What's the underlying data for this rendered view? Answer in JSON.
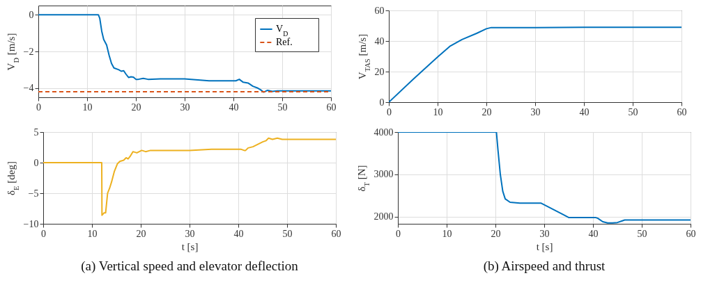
{
  "chart_data": [
    {
      "type": "line",
      "xlim": [
        0,
        60
      ],
      "xticks": [
        0,
        10,
        20,
        30,
        40,
        50,
        60
      ],
      "ylim": [
        -4.5,
        0.5
      ],
      "yticks": [
        -4,
        -2,
        0
      ],
      "ylabel": "V$_{D}$   [m/s]",
      "grid": true,
      "legend": "top right",
      "series": [
        {
          "name": "V$_{D}$",
          "color": "#0072bd",
          "line_style": "solid",
          "x": [
            0,
            12,
            12.3,
            12.6,
            13,
            13.4,
            14,
            14.5,
            15,
            15.5,
            16.5,
            17,
            17.5,
            18,
            18.5,
            19,
            19.5,
            20,
            20.5,
            21.5,
            22.5,
            25,
            30,
            35,
            40.5,
            41.2,
            42,
            43,
            44,
            45,
            45.5,
            46.2,
            47,
            47.5,
            48,
            49,
            60
          ],
          "values": [
            0,
            0,
            0,
            -0.2,
            -0.9,
            -1.35,
            -1.65,
            -2.2,
            -2.65,
            -2.9,
            -3.0,
            -3.08,
            -3.05,
            -3.25,
            -3.42,
            -3.38,
            -3.4,
            -3.52,
            -3.52,
            -3.47,
            -3.52,
            -3.5,
            -3.5,
            -3.6,
            -3.6,
            -3.52,
            -3.68,
            -3.72,
            -3.9,
            -4.0,
            -4.08,
            -4.22,
            -4.12,
            -4.15,
            -4.18,
            -4.15,
            -4.15
          ]
        },
        {
          "name": "Ref.",
          "color": "#d95319",
          "line_style": "dashed",
          "x": [
            0,
            60
          ],
          "values": [
            -4.2,
            -4.2
          ]
        }
      ]
    },
    {
      "type": "line",
      "xlim": [
        0,
        60
      ],
      "xticks": [
        0,
        10,
        20,
        30,
        40,
        50,
        60
      ],
      "ylim": [
        -10,
        5
      ],
      "yticks": [
        -10,
        -5,
        0,
        5
      ],
      "xlabel": "t   [s]",
      "ylabel": "δ$_{E}$   [deg]",
      "grid": true,
      "annotations": [
        "(a) Vertical speed and elevator deflection"
      ],
      "series": [
        {
          "color": "#edb120",
          "line_style": "solid",
          "x": [
            0,
            12,
            12.05,
            12.5,
            12.8,
            13.2,
            13.6,
            14,
            14.6,
            15.2,
            15.7,
            16.5,
            17,
            17.4,
            17.8,
            18.4,
            19.2,
            20.2,
            21,
            22,
            24,
            30,
            34.5,
            40.5,
            41.2,
            41.5,
            42,
            43,
            44,
            45,
            45.7,
            46.2,
            47,
            48,
            49,
            50,
            60
          ],
          "values": [
            0,
            0,
            -8.6,
            -8.2,
            -8.2,
            -5,
            -4.2,
            -3.2,
            -1.4,
            -0.2,
            0.2,
            0.4,
            0.8,
            0.6,
            1,
            1.8,
            1.6,
            2,
            1.8,
            2,
            2,
            2,
            2.2,
            2.2,
            2,
            2,
            2.4,
            2.6,
            3,
            3.4,
            3.6,
            4,
            3.8,
            4,
            3.8,
            3.8,
            3.8
          ]
        }
      ]
    },
    {
      "type": "line",
      "xlim": [
        0,
        60
      ],
      "xticks": [
        0,
        10,
        20,
        30,
        40,
        50,
        60
      ],
      "ylim": [
        0,
        60
      ],
      "yticks": [
        0,
        20,
        40,
        60
      ],
      "ylabel": "V$_{TAS}$   [m/s]",
      "grid": true,
      "series": [
        {
          "color": "#0072bd",
          "line_style": "solid",
          "x": [
            0,
            5,
            10,
            12.5,
            15,
            18,
            20,
            21,
            30,
            40,
            60
          ],
          "values": [
            0,
            15,
            29.5,
            36.5,
            41,
            45,
            48,
            48.8,
            48.8,
            49,
            49
          ]
        }
      ]
    },
    {
      "type": "line",
      "xlim": [
        0,
        60
      ],
      "xticks": [
        0,
        10,
        20,
        30,
        40,
        50,
        60
      ],
      "ylim": [
        1830,
        4000
      ],
      "yticks": [
        2000,
        3000,
        4000
      ],
      "xlabel": "t   [s]",
      "ylabel": "δ$_{T}$   [N]",
      "grid": true,
      "annotations": [
        "(b) Airspeed and thrust"
      ],
      "series": [
        {
          "color": "#0072bd",
          "line_style": "solid",
          "x": [
            0,
            20.2,
            20.5,
            21,
            21.5,
            22,
            23,
            25,
            29.3,
            30,
            32,
            34,
            35,
            40.5,
            41,
            42,
            43,
            44,
            45,
            46,
            46.5,
            47,
            48,
            60
          ],
          "values": [
            4000,
            4000,
            3600,
            3000,
            2600,
            2420,
            2340,
            2320,
            2320,
            2280,
            2160,
            2040,
            1980,
            1980,
            1960,
            1880,
            1850,
            1850,
            1860,
            1900,
            1920,
            1920,
            1920,
            1920
          ]
        }
      ]
    }
  ]
}
